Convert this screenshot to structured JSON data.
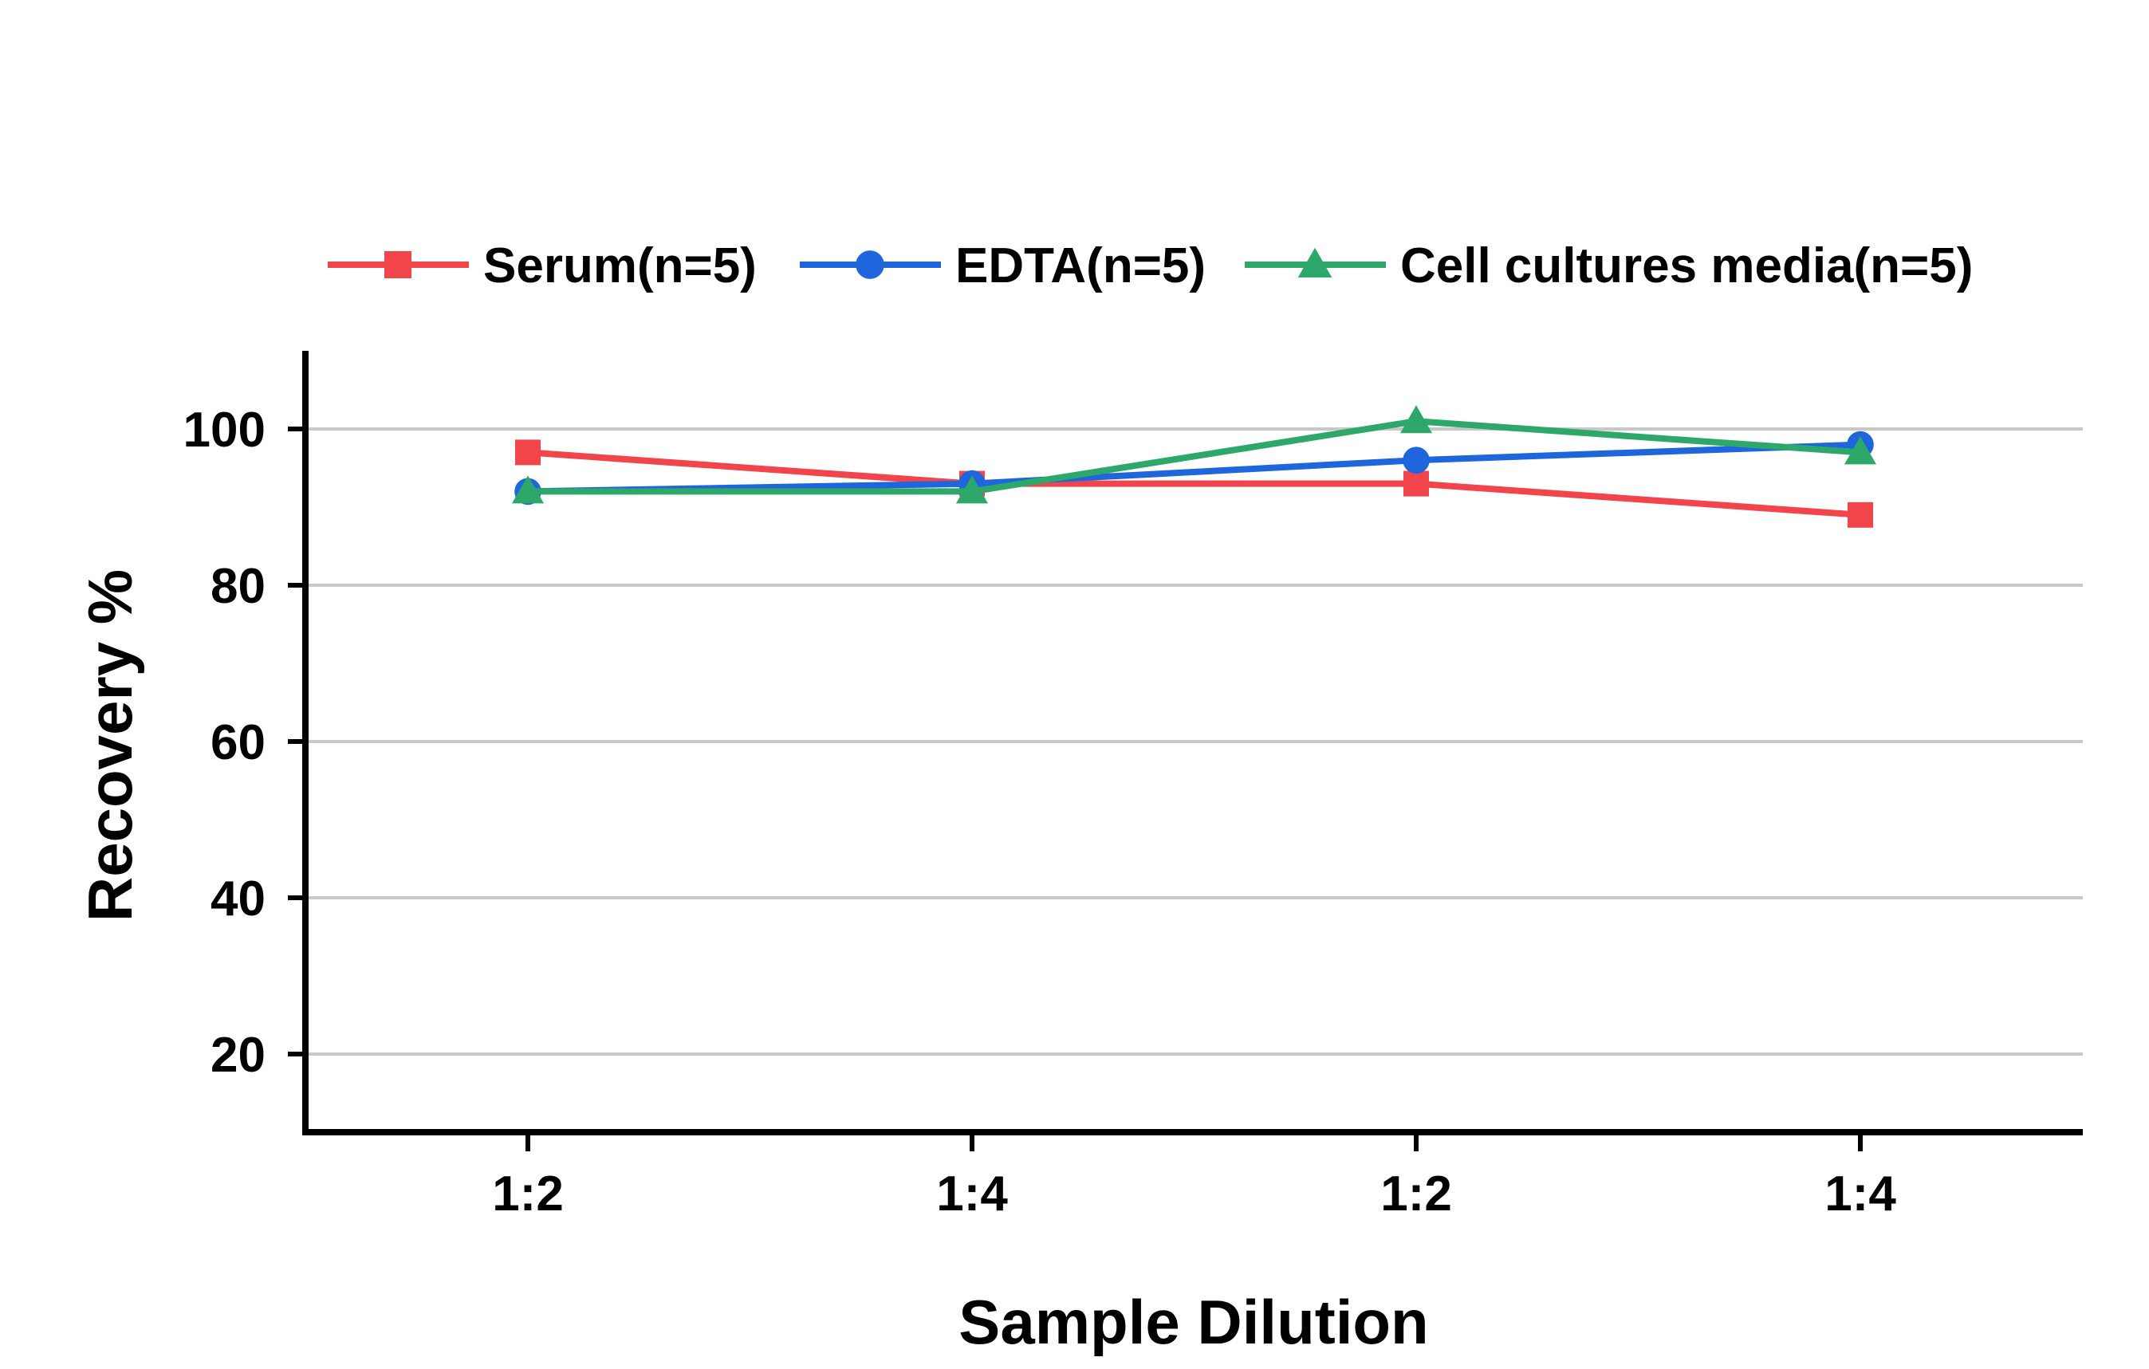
{
  "chart_data": {
    "type": "line",
    "categories": [
      "1:2",
      "1:4",
      "1:2",
      "1:4"
    ],
    "series": [
      {
        "name": "Serum(n=5)",
        "values": [
          97,
          93,
          93,
          89
        ],
        "color": "#f2444b",
        "marker": "square"
      },
      {
        "name": "EDTA(n=5)",
        "values": [
          92,
          93,
          96,
          98
        ],
        "color": "#1f66dd",
        "marker": "circle"
      },
      {
        "name": "Cell cultures media(n=5)",
        "values": [
          92,
          92,
          101,
          97
        ],
        "color": "#2ea86a",
        "marker": "triangle"
      }
    ],
    "xlabel": "Sample Dilution",
    "ylabel": "Recovery %",
    "ylim": [
      10,
      110
    ],
    "yticks": [
      20,
      40,
      60,
      80,
      100
    ],
    "grid": true,
    "legend_position": "top"
  }
}
